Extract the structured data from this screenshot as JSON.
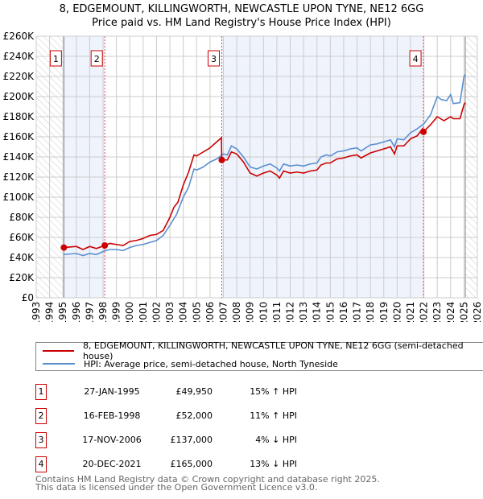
{
  "title_line1": "8, EDGEMOUNT, KILLINGWORTH, NEWCASTLE UPON TYNE, NE12 6GG",
  "title_line2": "Price paid vs. HM Land Registry's House Price Index (HPI)",
  "colors": {
    "property": "#cc0000",
    "hpi": "#5b8fd0",
    "band": "#eef3fc",
    "grid": "#cccccc"
  },
  "legend": {
    "property": "8, EDGEMOUNT, KILLINGWORTH, NEWCASTLE UPON TYNE, NE12 6GG (semi-detached house)",
    "hpi": "HPI: Average price, semi-detached house, North Tyneside"
  },
  "transactions": [
    {
      "num": "1",
      "date": "27-JAN-1995",
      "price": "£49,950",
      "hpi": "15% ↑ HPI"
    },
    {
      "num": "2",
      "date": "16-FEB-1998",
      "price": "£52,000",
      "hpi": "11% ↑ HPI"
    },
    {
      "num": "3",
      "date": "17-NOV-2006",
      "price": "£137,000",
      "hpi": "4% ↓ HPI"
    },
    {
      "num": "4",
      "date": "20-DEC-2021",
      "price": "£165,000",
      "hpi": "13% ↓ HPI"
    }
  ],
  "footer_line1": "Contains HM Land Registry data © Crown copyright and database right 2025.",
  "footer_line2": "This data is licensed under the Open Government Licence v3.0.",
  "chart_data": {
    "type": "line",
    "xlim": [
      1993,
      2026
    ],
    "ylim": [
      0,
      260000
    ],
    "grid": true,
    "yticks": [
      0,
      20000,
      40000,
      60000,
      80000,
      100000,
      120000,
      140000,
      160000,
      180000,
      200000,
      220000,
      240000,
      260000
    ],
    "ytick_labels": [
      "£0",
      "£20K",
      "£40K",
      "£60K",
      "£80K",
      "£100K",
      "£120K",
      "£140K",
      "£160K",
      "£180K",
      "£200K",
      "£220K",
      "£240K",
      "£260K"
    ],
    "xticks": [
      1993,
      1994,
      1995,
      1996,
      1997,
      1998,
      1999,
      2000,
      2001,
      2002,
      2003,
      2004,
      2005,
      2006,
      2007,
      2008,
      2009,
      2010,
      2011,
      2012,
      2013,
      2014,
      2015,
      2016,
      2017,
      2018,
      2019,
      2020,
      2021,
      2022,
      2023,
      2024,
      2025,
      2026
    ],
    "data_range": [
      1995.07,
      2025.1
    ],
    "sales": [
      {
        "label": "1",
        "x": 1995.07,
        "y": 49950
      },
      {
        "label": "2",
        "x": 1998.13,
        "y": 52000
      },
      {
        "label": "3",
        "x": 2006.88,
        "y": 137000
      },
      {
        "label": "4",
        "x": 2021.97,
        "y": 165000
      }
    ],
    "series": [
      {
        "name": "hpi",
        "points": [
          [
            1995.07,
            43
          ],
          [
            1996,
            44
          ],
          [
            1996.5,
            42
          ],
          [
            1997,
            44
          ],
          [
            1997.5,
            43
          ],
          [
            1998,
            46
          ],
          [
            1998.5,
            48
          ],
          [
            1999,
            48
          ],
          [
            1999.5,
            47
          ],
          [
            2000,
            50
          ],
          [
            2000.5,
            52
          ],
          [
            2001,
            53
          ],
          [
            2001.5,
            55
          ],
          [
            2002,
            57
          ],
          [
            2002.5,
            62
          ],
          [
            2003,
            72
          ],
          [
            2003.5,
            83
          ],
          [
            2004,
            100
          ],
          [
            2004.4,
            110
          ],
          [
            2004.8,
            128
          ],
          [
            2005,
            127
          ],
          [
            2005.5,
            130
          ],
          [
            2006,
            135
          ],
          [
            2006.5,
            138
          ],
          [
            2007,
            143
          ],
          [
            2007.3,
            142
          ],
          [
            2007.6,
            151
          ],
          [
            2008,
            148
          ],
          [
            2008.5,
            140
          ],
          [
            2009,
            130
          ],
          [
            2009.5,
            128
          ],
          [
            2010,
            131
          ],
          [
            2010.5,
            133
          ],
          [
            2011,
            129
          ],
          [
            2011.2,
            126
          ],
          [
            2011.5,
            133
          ],
          [
            2012,
            131
          ],
          [
            2012.5,
            132
          ],
          [
            2013,
            131
          ],
          [
            2013.5,
            133
          ],
          [
            2014,
            134
          ],
          [
            2014.3,
            140
          ],
          [
            2014.7,
            142
          ],
          [
            2015,
            141
          ],
          [
            2015.5,
            145
          ],
          [
            2016,
            146
          ],
          [
            2016.5,
            148
          ],
          [
            2017,
            149
          ],
          [
            2017.3,
            146
          ],
          [
            2018,
            152
          ],
          [
            2018.5,
            153
          ],
          [
            2019,
            155
          ],
          [
            2019.5,
            157
          ],
          [
            2019.8,
            150
          ],
          [
            2020,
            158
          ],
          [
            2020.5,
            157
          ],
          [
            2021,
            164
          ],
          [
            2021.5,
            168
          ],
          [
            2022,
            173
          ],
          [
            2022.5,
            182
          ],
          [
            2023,
            200
          ],
          [
            2023.3,
            197
          ],
          [
            2023.7,
            196
          ],
          [
            2024,
            202
          ],
          [
            2024.2,
            193
          ],
          [
            2024.7,
            194
          ],
          [
            2025,
            220
          ],
          [
            2025.1,
            222
          ]
        ]
      },
      {
        "name": "property",
        "points": [
          [
            1995.07,
            49.95
          ],
          [
            1996,
            51
          ],
          [
            1996.5,
            48
          ],
          [
            1997,
            51
          ],
          [
            1997.5,
            49
          ],
          [
            1998.13,
            52
          ],
          [
            1998.5,
            54
          ],
          [
            1999,
            53
          ],
          [
            1999.5,
            52
          ],
          [
            2000,
            56
          ],
          [
            2000.5,
            57
          ],
          [
            2001,
            59
          ],
          [
            2001.5,
            62
          ],
          [
            2002,
            63
          ],
          [
            2002.5,
            67
          ],
          [
            2003,
            80
          ],
          [
            2003.3,
            90
          ],
          [
            2003.6,
            95
          ],
          [
            2004,
            112
          ],
          [
            2004.4,
            125
          ],
          [
            2004.8,
            142
          ],
          [
            2005,
            141
          ],
          [
            2005.5,
            145
          ],
          [
            2006,
            149
          ],
          [
            2006.5,
            155
          ],
          [
            2006.85,
            159
          ],
          [
            2006.88,
            137
          ],
          [
            2007.3,
            137
          ],
          [
            2007.6,
            145
          ],
          [
            2008,
            143
          ],
          [
            2008.5,
            135
          ],
          [
            2009,
            124
          ],
          [
            2009.5,
            121
          ],
          [
            2010,
            124
          ],
          [
            2010.5,
            126
          ],
          [
            2011,
            122
          ],
          [
            2011.2,
            119
          ],
          [
            2011.5,
            126
          ],
          [
            2012,
            124
          ],
          [
            2012.5,
            125
          ],
          [
            2013,
            124
          ],
          [
            2013.5,
            126
          ],
          [
            2014,
            127
          ],
          [
            2014.3,
            132
          ],
          [
            2014.7,
            134
          ],
          [
            2015,
            134
          ],
          [
            2015.5,
            138
          ],
          [
            2016,
            139
          ],
          [
            2016.5,
            141
          ],
          [
            2017,
            142
          ],
          [
            2017.3,
            139
          ],
          [
            2018,
            144
          ],
          [
            2018.5,
            146
          ],
          [
            2019,
            148
          ],
          [
            2019.5,
            150
          ],
          [
            2019.8,
            143
          ],
          [
            2020,
            151
          ],
          [
            2020.5,
            151
          ],
          [
            2021,
            158
          ],
          [
            2021.5,
            161
          ],
          [
            2021.9,
            168
          ],
          [
            2021.97,
            165
          ],
          [
            2022.5,
            172
          ],
          [
            2023,
            180
          ],
          [
            2023.5,
            176
          ],
          [
            2024,
            180
          ],
          [
            2024.2,
            178
          ],
          [
            2024.7,
            178
          ],
          [
            2025,
            192
          ],
          [
            2025.1,
            194
          ]
        ]
      }
    ]
  }
}
